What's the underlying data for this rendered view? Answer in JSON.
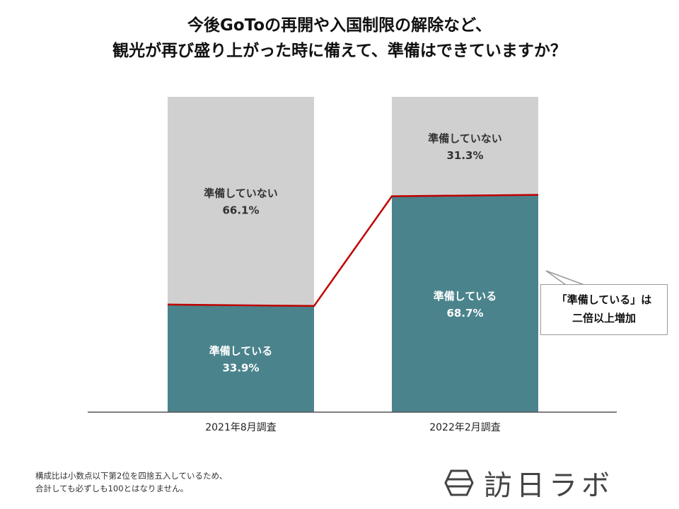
{
  "title": {
    "line1": "今後GoToの再開や入国制限の解除など、",
    "line2": "観光が再び盛り上がった時に備えて、準備はできていますか？"
  },
  "chart_data": {
    "type": "bar",
    "stacked": true,
    "categories": [
      "2021年8月調査",
      "2022年2月調査"
    ],
    "series": [
      {
        "name": "準備している",
        "values": [
          33.9,
          68.7
        ],
        "labels": [
          "33.9%",
          "68.7%"
        ],
        "color": "#4a838c"
      },
      {
        "name": "準備していない",
        "values": [
          66.1,
          31.3
        ],
        "labels": [
          "66.1%",
          "31.3%"
        ],
        "color": "#d0d0d0"
      }
    ],
    "ylim": [
      0,
      100
    ],
    "connector_color": "#c00000",
    "legend": "none"
  },
  "callout": {
    "line1": "「準備している」は",
    "line2": "二倍以上増加"
  },
  "note": {
    "line1": "構成比は小数点以下第2位を四捨五入しているため、",
    "line2": "合計しても必ずしも100とはなりません。"
  },
  "logo": {
    "text": "訪日ラボ"
  }
}
